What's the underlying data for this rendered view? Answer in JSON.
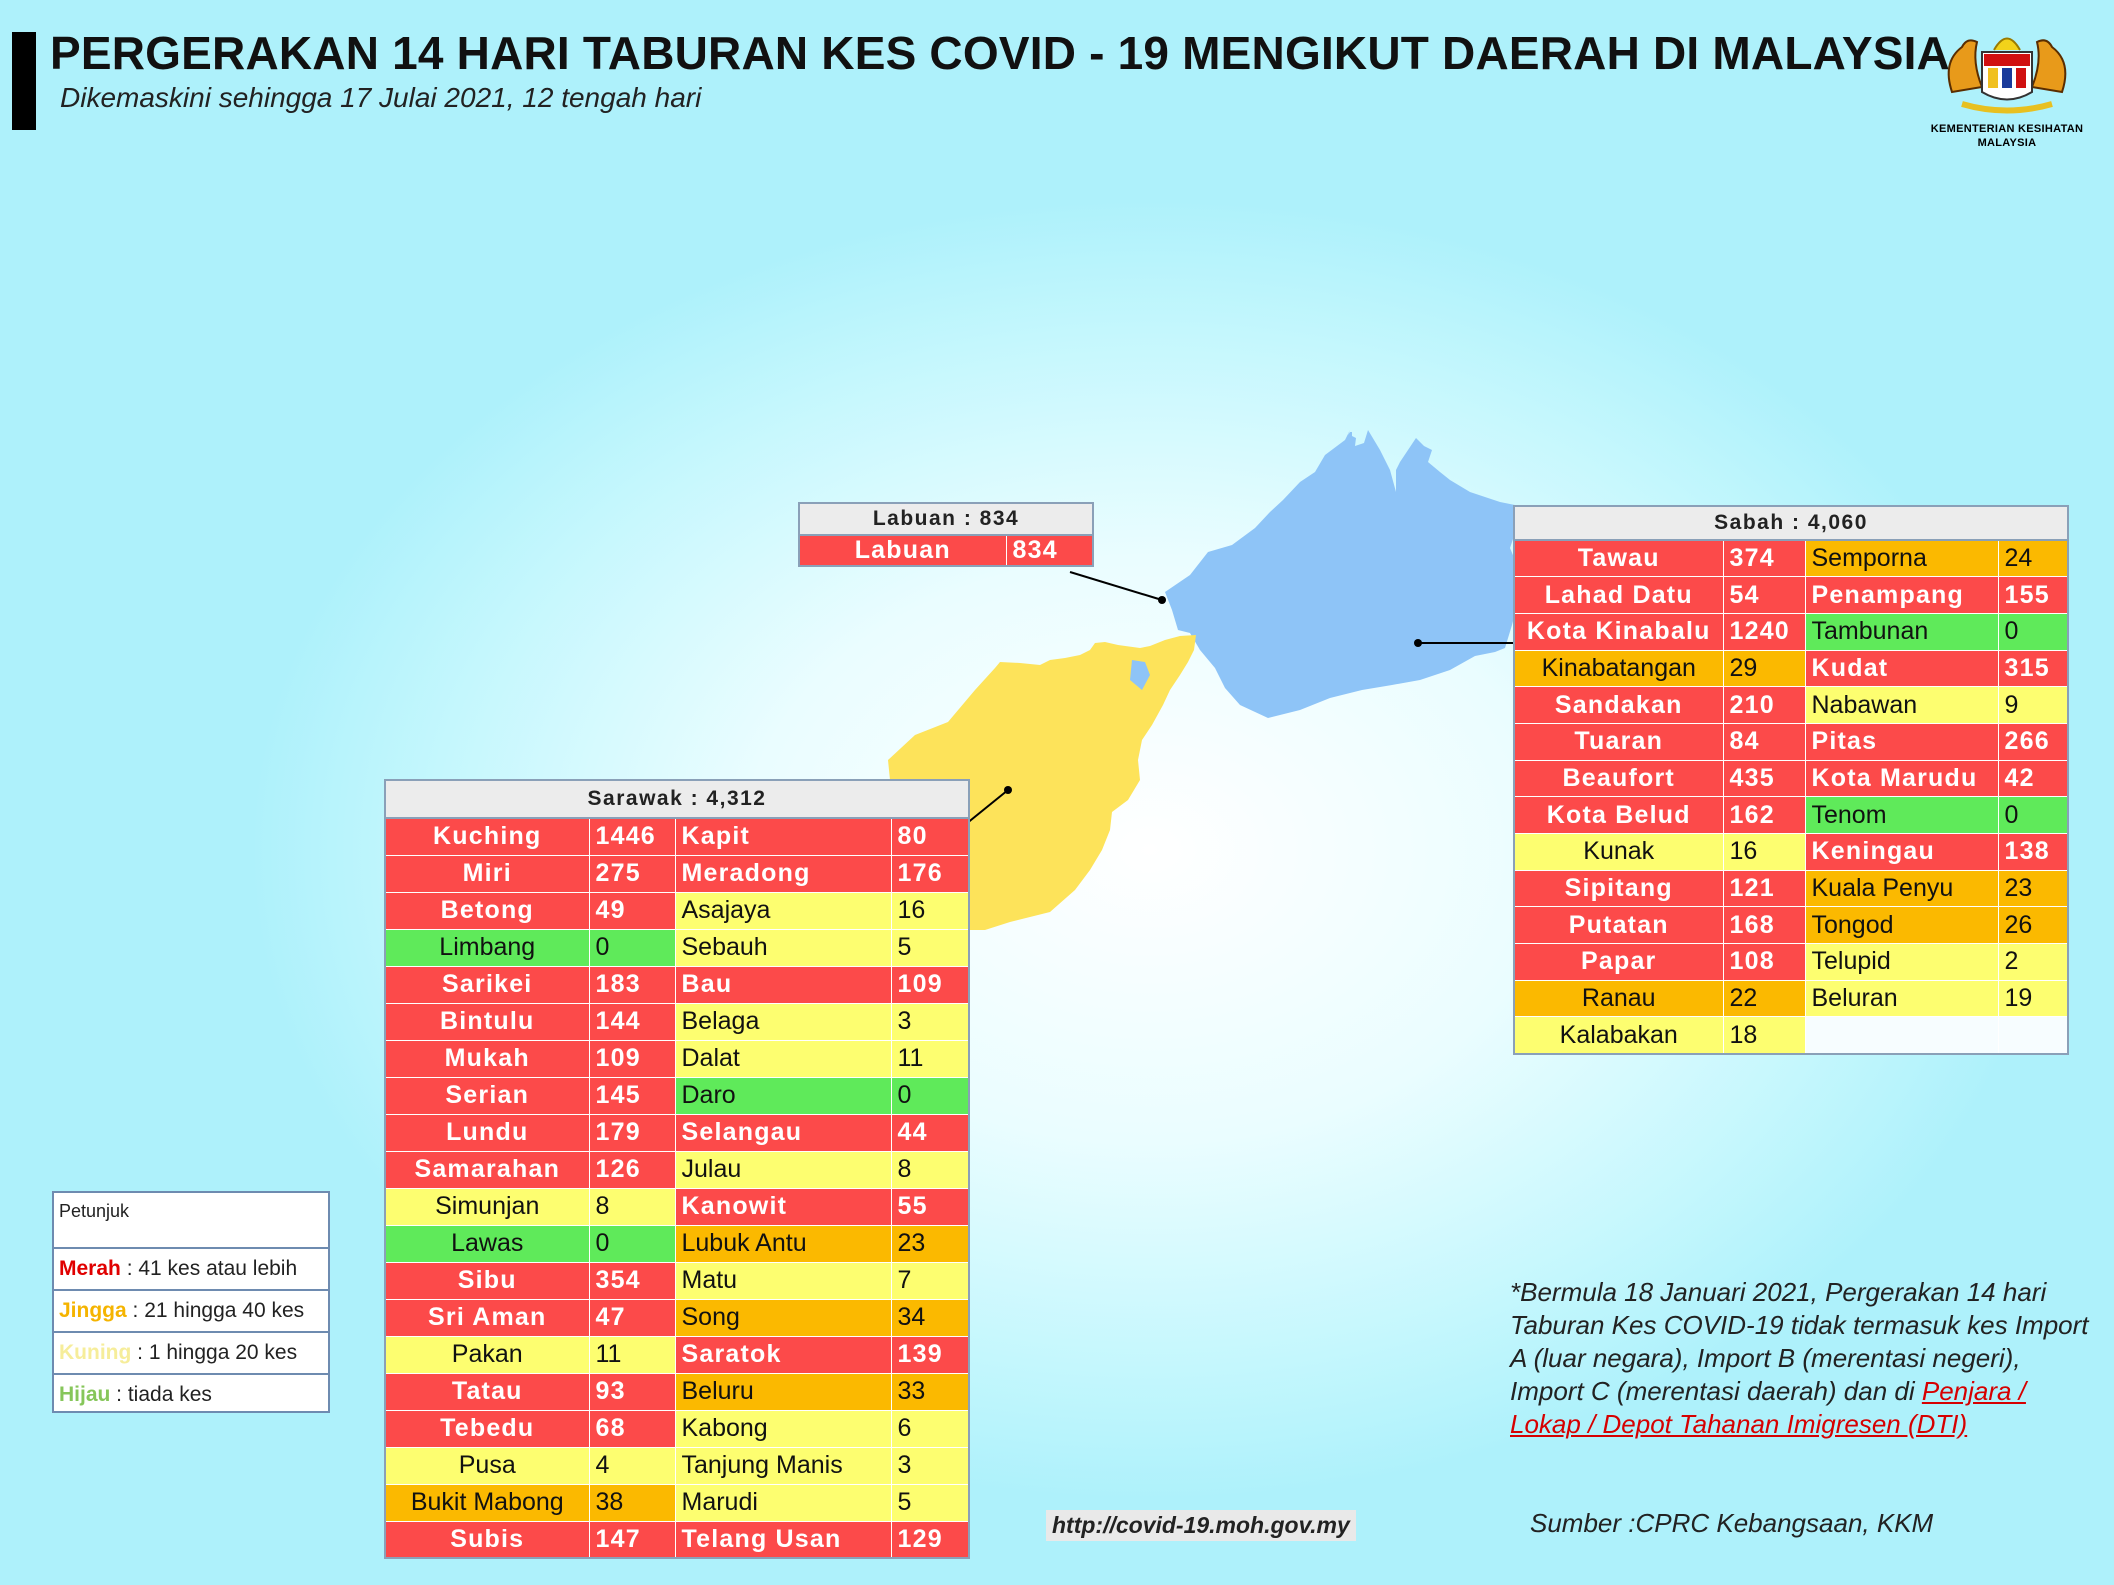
{
  "header": {
    "title": "PERGERAKAN 14 HARI TABURAN KES COVID - 19 MENGIKUT DAERAH DI MALAYSIA",
    "subtitle": "Dikemaskini sehingga 17 Julai 2021, 12 tengah hari",
    "logo_text_1": "KEMENTERIAN KESIHATAN",
    "logo_text_2": "MALAYSIA"
  },
  "colors": {
    "red": "#fc4a4a",
    "orange": "#fbb900",
    "yellow": "#fdfe70",
    "green": "#5fea5a",
    "sabah_map": "#8ec4f7",
    "sarawak_map": "#fde35a"
  },
  "labuan": {
    "header": "Labuan : 834",
    "rows": [
      {
        "name": "Labuan",
        "value": "834",
        "color": "red"
      }
    ]
  },
  "sabah": {
    "header": "Sabah : 4,060",
    "rows": [
      [
        {
          "name": "Tawau",
          "value": "374",
          "color": "red"
        },
        {
          "name": "Semporna",
          "value": "24",
          "color": "orange"
        }
      ],
      [
        {
          "name": "Lahad Datu",
          "value": "54",
          "color": "red"
        },
        {
          "name": "Penampang",
          "value": "155",
          "color": "red"
        }
      ],
      [
        {
          "name": "Kota Kinabalu",
          "value": "1240",
          "color": "red"
        },
        {
          "name": "Tambunan",
          "value": "0",
          "color": "green"
        }
      ],
      [
        {
          "name": "Kinabatangan",
          "value": "29",
          "color": "orange"
        },
        {
          "name": "Kudat",
          "value": "315",
          "color": "red"
        }
      ],
      [
        {
          "name": "Sandakan",
          "value": "210",
          "color": "red"
        },
        {
          "name": "Nabawan",
          "value": "9",
          "color": "yellow"
        }
      ],
      [
        {
          "name": "Tuaran",
          "value": "84",
          "color": "red"
        },
        {
          "name": "Pitas",
          "value": "266",
          "color": "red"
        }
      ],
      [
        {
          "name": "Beaufort",
          "value": "435",
          "color": "red"
        },
        {
          "name": "Kota Marudu",
          "value": "42",
          "color": "red"
        }
      ],
      [
        {
          "name": "Kota Belud",
          "value": "162",
          "color": "red"
        },
        {
          "name": "Tenom",
          "value": "0",
          "color": "green"
        }
      ],
      [
        {
          "name": "Kunak",
          "value": "16",
          "color": "yellow"
        },
        {
          "name": "Keningau",
          "value": "138",
          "color": "red"
        }
      ],
      [
        {
          "name": "Sipitang",
          "value": "121",
          "color": "red"
        },
        {
          "name": "Kuala Penyu",
          "value": "23",
          "color": "orange"
        }
      ],
      [
        {
          "name": "Putatan",
          "value": "168",
          "color": "red"
        },
        {
          "name": "Tongod",
          "value": "26",
          "color": "orange"
        }
      ],
      [
        {
          "name": "Papar",
          "value": "108",
          "color": "red"
        },
        {
          "name": "Telupid",
          "value": "2",
          "color": "yellow"
        }
      ],
      [
        {
          "name": "Ranau",
          "value": "22",
          "color": "orange"
        },
        {
          "name": "Beluran",
          "value": "19",
          "color": "yellow"
        }
      ],
      [
        {
          "name": "Kalabakan",
          "value": "18",
          "color": "yellow"
        },
        {
          "name": "",
          "value": "",
          "color": "empty"
        }
      ]
    ]
  },
  "sarawak": {
    "header": "Sarawak : 4,312",
    "rows": [
      [
        {
          "name": "Kuching",
          "value": "1446",
          "color": "red"
        },
        {
          "name": "Kapit",
          "value": "80",
          "color": "red"
        }
      ],
      [
        {
          "name": "Miri",
          "value": "275",
          "color": "red"
        },
        {
          "name": "Meradong",
          "value": "176",
          "color": "red"
        }
      ],
      [
        {
          "name": "Betong",
          "value": "49",
          "color": "red"
        },
        {
          "name": "Asajaya",
          "value": "16",
          "color": "yellow"
        }
      ],
      [
        {
          "name": "Limbang",
          "value": "0",
          "color": "green"
        },
        {
          "name": "Sebauh",
          "value": "5",
          "color": "yellow"
        }
      ],
      [
        {
          "name": "Sarikei",
          "value": "183",
          "color": "red"
        },
        {
          "name": "Bau",
          "value": "109",
          "color": "red"
        }
      ],
      [
        {
          "name": "Bintulu",
          "value": "144",
          "color": "red"
        },
        {
          "name": "Belaga",
          "value": "3",
          "color": "yellow"
        }
      ],
      [
        {
          "name": "Mukah",
          "value": "109",
          "color": "red"
        },
        {
          "name": "Dalat",
          "value": "11",
          "color": "yellow"
        }
      ],
      [
        {
          "name": "Serian",
          "value": "145",
          "color": "red"
        },
        {
          "name": "Daro",
          "value": "0",
          "color": "green"
        }
      ],
      [
        {
          "name": "Lundu",
          "value": "179",
          "color": "red"
        },
        {
          "name": "Selangau",
          "value": "44",
          "color": "red"
        }
      ],
      [
        {
          "name": "Samarahan",
          "value": "126",
          "color": "red"
        },
        {
          "name": "Julau",
          "value": "8",
          "color": "yellow"
        }
      ],
      [
        {
          "name": "Simunjan",
          "value": "8",
          "color": "yellow"
        },
        {
          "name": "Kanowit",
          "value": "55",
          "color": "red"
        }
      ],
      [
        {
          "name": "Lawas",
          "value": "0",
          "color": "green"
        },
        {
          "name": "Lubuk Antu",
          "value": "23",
          "color": "orange"
        }
      ],
      [
        {
          "name": "Sibu",
          "value": "354",
          "color": "red"
        },
        {
          "name": "Matu",
          "value": "7",
          "color": "yellow"
        }
      ],
      [
        {
          "name": "Sri Aman",
          "value": "47",
          "color": "red"
        },
        {
          "name": "Song",
          "value": "34",
          "color": "orange"
        }
      ],
      [
        {
          "name": "Pakan",
          "value": "11",
          "color": "yellow"
        },
        {
          "name": "Saratok",
          "value": "139",
          "color": "red"
        }
      ],
      [
        {
          "name": "Tatau",
          "value": "93",
          "color": "red"
        },
        {
          "name": "Beluru",
          "value": "33",
          "color": "orange"
        }
      ],
      [
        {
          "name": "Tebedu",
          "value": "68",
          "color": "red"
        },
        {
          "name": "Kabong",
          "value": "6",
          "color": "yellow"
        }
      ],
      [
        {
          "name": "Pusa",
          "value": "4",
          "color": "yellow"
        },
        {
          "name": "Tanjung Manis",
          "value": "3",
          "color": "yellow"
        }
      ],
      [
        {
          "name": "Bukit Mabong",
          "value": "38",
          "color": "orange"
        },
        {
          "name": "Marudi",
          "value": "5",
          "color": "yellow"
        }
      ],
      [
        {
          "name": "Subis",
          "value": "147",
          "color": "red"
        },
        {
          "name": "Telang Usan",
          "value": "129",
          "color": "red"
        }
      ]
    ]
  },
  "legend": {
    "title": "Petunjuk",
    "items": [
      {
        "key": "Merah",
        "text": " : 41 kes atau lebih",
        "color": "#e00000"
      },
      {
        "key": "Jingga",
        "text": " : 21 hingga 40 kes",
        "color": "#f5b400"
      },
      {
        "key": "Kuning",
        "text": " : 1 hingga 20 kes",
        "color": "#f6ed9a"
      },
      {
        "key": "Hijau",
        "text": " : tiada kes",
        "color": "#86c65a"
      }
    ]
  },
  "note": {
    "text": "*Bermula 18 Januari 2021, Pergerakan 14 hari Taburan Kes COVID-19 tidak termasuk kes Import A (luar negara), Import B (merentasi negeri), Import C (merentasi daerah) dan di ",
    "link": "Penjara / Lokap / Depot Tahanan Imigresen (DTI)"
  },
  "source": "Sumber :CPRC Kebangsaan,  KKM",
  "url": "http://covid-19.moh.gov.my"
}
